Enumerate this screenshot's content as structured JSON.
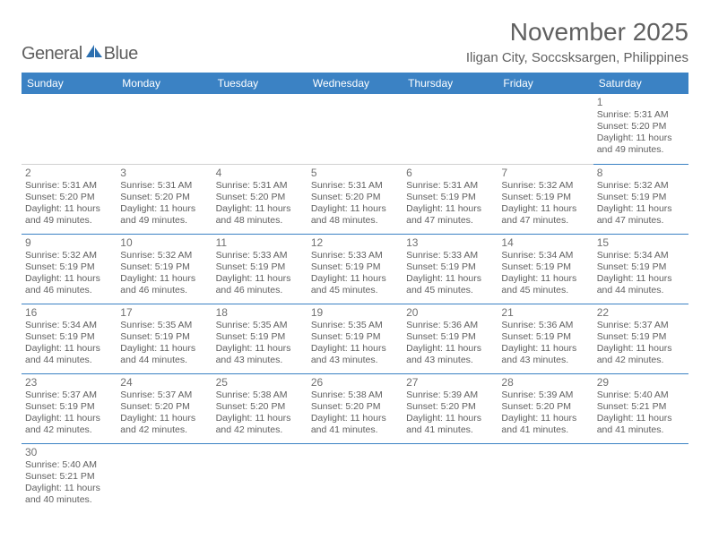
{
  "logo": {
    "general": "General",
    "blue": "Blue"
  },
  "title": {
    "month": "November 2025",
    "location": "Iligan City, Soccsksargen, Philippines"
  },
  "colors": {
    "headerBg": "#3b82c4",
    "headerText": "#ffffff",
    "cellBorder": "#3b82c4",
    "text": "#606060"
  },
  "dayNames": [
    "Sunday",
    "Monday",
    "Tuesday",
    "Wednesday",
    "Thursday",
    "Friday",
    "Saturday"
  ],
  "weeks": [
    [
      null,
      null,
      null,
      null,
      null,
      null,
      {
        "d": "1",
        "sr": "5:31 AM",
        "ss": "5:20 PM",
        "dl1": "11 hours",
        "dl2": "and 49 minutes."
      }
    ],
    [
      {
        "d": "2",
        "sr": "5:31 AM",
        "ss": "5:20 PM",
        "dl1": "11 hours",
        "dl2": "and 49 minutes."
      },
      {
        "d": "3",
        "sr": "5:31 AM",
        "ss": "5:20 PM",
        "dl1": "11 hours",
        "dl2": "and 49 minutes."
      },
      {
        "d": "4",
        "sr": "5:31 AM",
        "ss": "5:20 PM",
        "dl1": "11 hours",
        "dl2": "and 48 minutes."
      },
      {
        "d": "5",
        "sr": "5:31 AM",
        "ss": "5:20 PM",
        "dl1": "11 hours",
        "dl2": "and 48 minutes."
      },
      {
        "d": "6",
        "sr": "5:31 AM",
        "ss": "5:19 PM",
        "dl1": "11 hours",
        "dl2": "and 47 minutes."
      },
      {
        "d": "7",
        "sr": "5:32 AM",
        "ss": "5:19 PM",
        "dl1": "11 hours",
        "dl2": "and 47 minutes."
      },
      {
        "d": "8",
        "sr": "5:32 AM",
        "ss": "5:19 PM",
        "dl1": "11 hours",
        "dl2": "and 47 minutes."
      }
    ],
    [
      {
        "d": "9",
        "sr": "5:32 AM",
        "ss": "5:19 PM",
        "dl1": "11 hours",
        "dl2": "and 46 minutes."
      },
      {
        "d": "10",
        "sr": "5:32 AM",
        "ss": "5:19 PM",
        "dl1": "11 hours",
        "dl2": "and 46 minutes."
      },
      {
        "d": "11",
        "sr": "5:33 AM",
        "ss": "5:19 PM",
        "dl1": "11 hours",
        "dl2": "and 46 minutes."
      },
      {
        "d": "12",
        "sr": "5:33 AM",
        "ss": "5:19 PM",
        "dl1": "11 hours",
        "dl2": "and 45 minutes."
      },
      {
        "d": "13",
        "sr": "5:33 AM",
        "ss": "5:19 PM",
        "dl1": "11 hours",
        "dl2": "and 45 minutes."
      },
      {
        "d": "14",
        "sr": "5:34 AM",
        "ss": "5:19 PM",
        "dl1": "11 hours",
        "dl2": "and 45 minutes."
      },
      {
        "d": "15",
        "sr": "5:34 AM",
        "ss": "5:19 PM",
        "dl1": "11 hours",
        "dl2": "and 44 minutes."
      }
    ],
    [
      {
        "d": "16",
        "sr": "5:34 AM",
        "ss": "5:19 PM",
        "dl1": "11 hours",
        "dl2": "and 44 minutes."
      },
      {
        "d": "17",
        "sr": "5:35 AM",
        "ss": "5:19 PM",
        "dl1": "11 hours",
        "dl2": "and 44 minutes."
      },
      {
        "d": "18",
        "sr": "5:35 AM",
        "ss": "5:19 PM",
        "dl1": "11 hours",
        "dl2": "and 43 minutes."
      },
      {
        "d": "19",
        "sr": "5:35 AM",
        "ss": "5:19 PM",
        "dl1": "11 hours",
        "dl2": "and 43 minutes."
      },
      {
        "d": "20",
        "sr": "5:36 AM",
        "ss": "5:19 PM",
        "dl1": "11 hours",
        "dl2": "and 43 minutes."
      },
      {
        "d": "21",
        "sr": "5:36 AM",
        "ss": "5:19 PM",
        "dl1": "11 hours",
        "dl2": "and 43 minutes."
      },
      {
        "d": "22",
        "sr": "5:37 AM",
        "ss": "5:19 PM",
        "dl1": "11 hours",
        "dl2": "and 42 minutes."
      }
    ],
    [
      {
        "d": "23",
        "sr": "5:37 AM",
        "ss": "5:19 PM",
        "dl1": "11 hours",
        "dl2": "and 42 minutes."
      },
      {
        "d": "24",
        "sr": "5:37 AM",
        "ss": "5:20 PM",
        "dl1": "11 hours",
        "dl2": "and 42 minutes."
      },
      {
        "d": "25",
        "sr": "5:38 AM",
        "ss": "5:20 PM",
        "dl1": "11 hours",
        "dl2": "and 42 minutes."
      },
      {
        "d": "26",
        "sr": "5:38 AM",
        "ss": "5:20 PM",
        "dl1": "11 hours",
        "dl2": "and 41 minutes."
      },
      {
        "d": "27",
        "sr": "5:39 AM",
        "ss": "5:20 PM",
        "dl1": "11 hours",
        "dl2": "and 41 minutes."
      },
      {
        "d": "28",
        "sr": "5:39 AM",
        "ss": "5:20 PM",
        "dl1": "11 hours",
        "dl2": "and 41 minutes."
      },
      {
        "d": "29",
        "sr": "5:40 AM",
        "ss": "5:21 PM",
        "dl1": "11 hours",
        "dl2": "and 41 minutes."
      }
    ],
    [
      {
        "d": "30",
        "sr": "5:40 AM",
        "ss": "5:21 PM",
        "dl1": "11 hours",
        "dl2": "and 40 minutes."
      },
      null,
      null,
      null,
      null,
      null,
      null
    ]
  ],
  "labels": {
    "sunrise": "Sunrise: ",
    "sunset": "Sunset: ",
    "daylight": "Daylight: "
  }
}
